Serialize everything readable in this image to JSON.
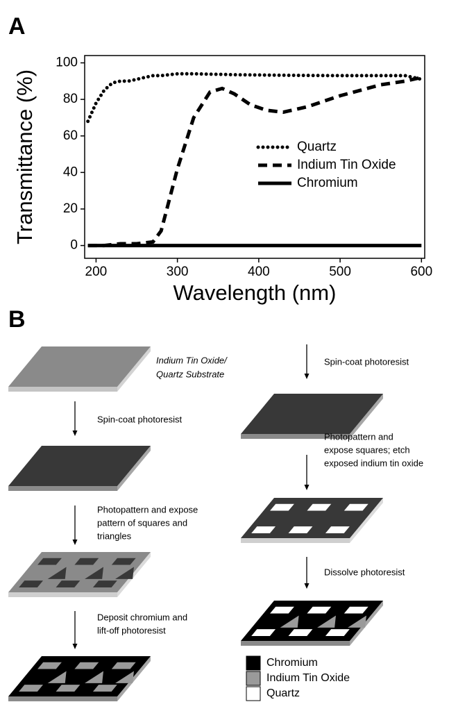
{
  "panels": [
    "A",
    "B"
  ],
  "chart_data": {
    "type": "line",
    "xlabel": "Wavelength (nm)",
    "ylabel": "Transmittance (%)",
    "x": [
      190,
      200,
      210,
      220,
      230,
      240,
      250,
      260,
      270,
      280,
      290,
      300,
      320,
      340,
      355,
      370,
      390,
      410,
      430,
      460,
      500,
      550,
      580,
      600
    ],
    "series": [
      {
        "name": "Quartz",
        "color": "#000000",
        "style": "dotted",
        "values": [
          68,
          78,
          85,
          89,
          90,
          90,
          91,
          92,
          93,
          93,
          93.5,
          94,
          94,
          93.8,
          93.7,
          93.5,
          93.4,
          93.3,
          93.2,
          93.1,
          93,
          93,
          93,
          91
        ]
      },
      {
        "name": "Indium Tin Oxide",
        "color": "#000000",
        "style": "dashed",
        "values": [
          0,
          0,
          0,
          0.5,
          1,
          1,
          1,
          1.5,
          2,
          8,
          25,
          42,
          70,
          84,
          86,
          83,
          77,
          74,
          73,
          76,
          82,
          88,
          90,
          92
        ]
      },
      {
        "name": "Chromium",
        "color": "#000000",
        "style": "solid",
        "values": [
          0,
          0,
          0,
          0,
          0,
          0,
          0,
          0,
          0,
          0,
          0,
          0,
          0,
          0,
          0,
          0,
          0,
          0,
          0,
          0,
          0,
          0,
          0,
          0
        ]
      }
    ],
    "xlim": [
      186,
      604
    ],
    "ylim": [
      -7,
      104
    ],
    "xticks": [
      200,
      300,
      400,
      500,
      600
    ],
    "yticks": [
      0,
      20,
      40,
      60,
      80,
      100
    ],
    "legend": "upper right"
  },
  "diagram": {
    "substrate_label": [
      "Indium Tin Oxide/",
      "Quartz Substrate"
    ],
    "left_steps": [
      [
        "Spin-coat photoresist"
      ],
      [
        "Photopattern and expose",
        "pattern of squares and",
        "triangles"
      ],
      [
        "Deposit chromium and",
        "lift-off photoresist"
      ]
    ],
    "right_steps": [
      [
        "Spin-coat photoresist"
      ],
      [
        "Photopattern and",
        "expose squares; etch",
        "exposed indium tin oxide"
      ],
      [
        "Dissolve photoresist"
      ]
    ],
    "legend": [
      "Chromium",
      "Indium Tin Oxide",
      "Quartz"
    ]
  }
}
